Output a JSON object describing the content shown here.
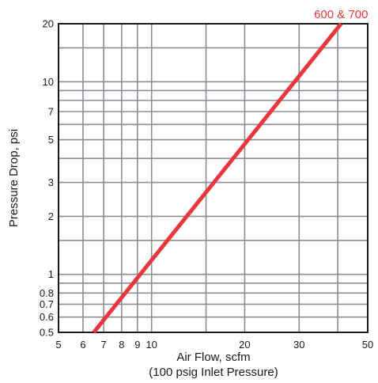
{
  "chart_data": {
    "type": "line",
    "title": "",
    "xlabel": "Air Flow, scfm",
    "xlabel_sub": "(100 psig Inlet Pressure)",
    "ylabel": "Pressure Drop, psi",
    "xscale": "log",
    "yscale": "log",
    "xlim": [
      5,
      50
    ],
    "ylim": [
      0.5,
      20
    ],
    "grid": true,
    "x_ticks": [
      5,
      6,
      7,
      8,
      9,
      10,
      20,
      30,
      50
    ],
    "x_tick_labels": [
      "5",
      "6",
      "7",
      "8",
      "9",
      "10",
      "20",
      "30",
      "50"
    ],
    "y_ticks": [
      0.5,
      0.6,
      0.7,
      0.8,
      1,
      2,
      3,
      5,
      7,
      10,
      20
    ],
    "y_tick_labels": [
      "0.5",
      "0.6",
      "0.7",
      "0.8",
      "1",
      "2",
      "3",
      "5",
      "7",
      "10",
      "20"
    ],
    "x_grid": [
      6,
      7,
      8,
      9,
      10,
      15,
      20,
      30,
      40
    ],
    "y_grid": [
      0.6,
      0.7,
      0.8,
      0.9,
      1,
      1.5,
      2,
      3,
      4,
      5,
      6,
      7,
      8,
      9,
      10,
      15
    ],
    "series": [
      {
        "name": "600 & 700",
        "color": "#e8383d",
        "x": [
          6.5,
          41
        ],
        "y": [
          0.5,
          20
        ]
      }
    ]
  }
}
